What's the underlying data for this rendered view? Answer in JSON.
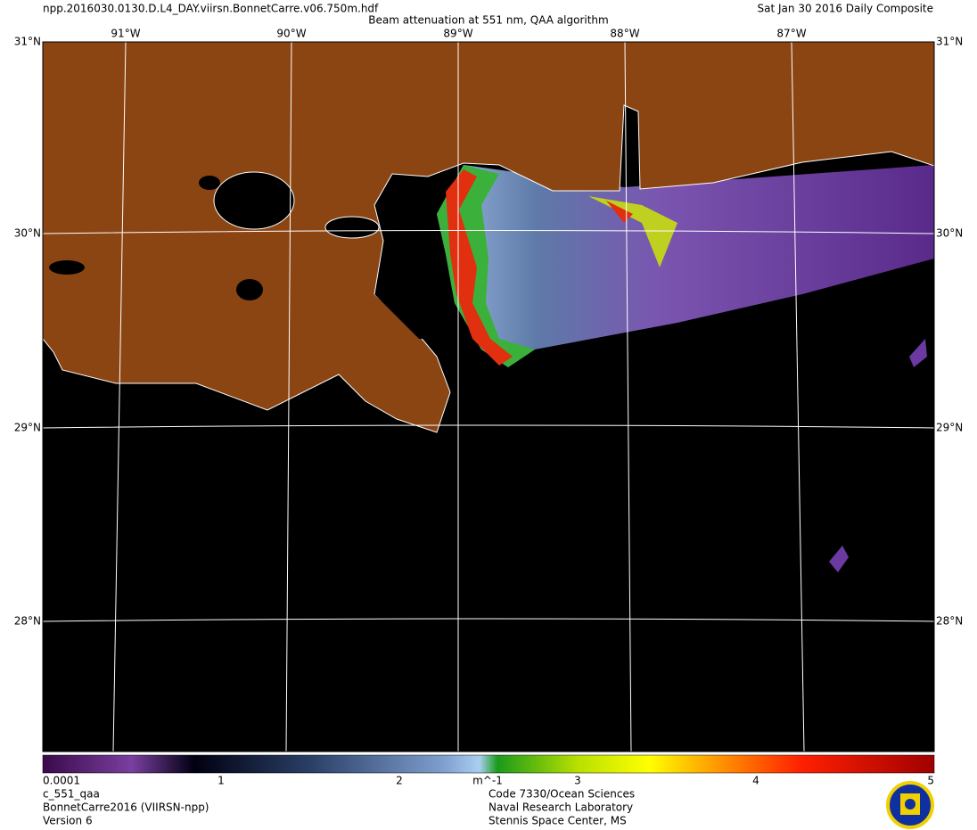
{
  "header": {
    "filename": "npp.2016030.0130.D.L4_DAY.viirsn.BonnetCarre.v06.750m.hdf",
    "title": "Beam attenuation at 551 nm, QAA algorithm",
    "date": "Sat Jan 30 2016 Daily Composite"
  },
  "graticule": {
    "longitudes": [
      "91°W",
      "90°W",
      "89°W",
      "88°W",
      "87°W"
    ],
    "latitudes": [
      "31°N",
      "30°N",
      "29°N",
      "28°N"
    ]
  },
  "colorbar": {
    "ticks": [
      0.0001,
      1,
      2,
      3,
      4,
      5
    ],
    "unit": "m^-1"
  },
  "footer": {
    "left": [
      "c_551_qaa",
      "BonnetCarre2016 (VIIRSN-npp)",
      "Version 6"
    ],
    "right": [
      "Code 7330/Ocean Sciences",
      "Naval Research Laboratory",
      "Stennis Space Center, MS"
    ]
  }
}
